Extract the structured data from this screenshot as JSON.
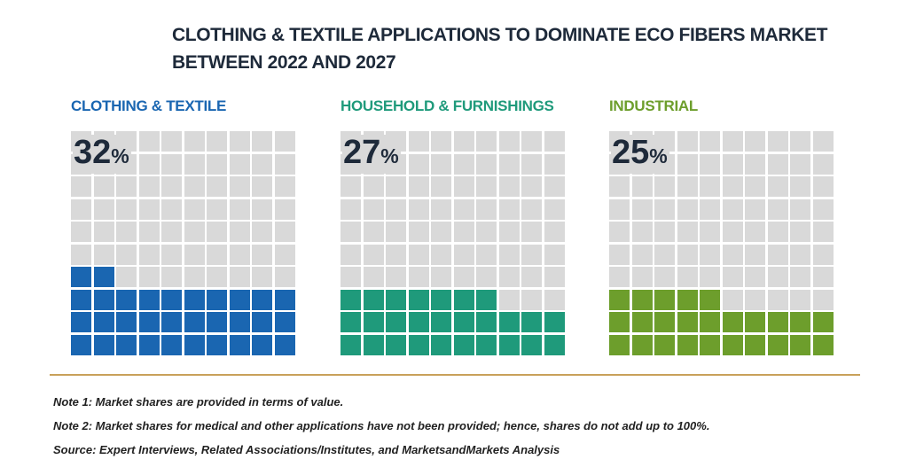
{
  "title": {
    "line1": "CLOTHING & TEXTILE APPLICATIONS TO DOMINATE ECO FIBERS MARKET",
    "line2": "BETWEEN 2022 AND 2027"
  },
  "chart_data": {
    "type": "waffle",
    "title": "CLOTHING & TEXTILE APPLICATIONS TO DOMINATE ECO FIBERS MARKET BETWEEN 2022 AND 2027",
    "series": [
      {
        "name": "CLOTHING & TEXTILE",
        "value": 32,
        "value_label": "32",
        "unit": "%",
        "color": "#1a66b1"
      },
      {
        "name": "HOUSEHOLD & FURNISHINGS",
        "value": 27,
        "value_label": "27",
        "unit": "%",
        "color": "#1f9a7b"
      },
      {
        "name": "INDUSTRIAL",
        "value": 25,
        "value_label": "25",
        "unit": "%",
        "color": "#6d9e2c"
      }
    ],
    "grid_rows": 10,
    "grid_cols": 10,
    "empty_color": "#d9d9d9",
    "number_color": "#1e2a3a"
  },
  "notes": [
    "Note 1: Market shares are provided in terms of value.",
    "Note 2: Market shares for medical and other applications have not been provided; hence, shares do not add up to 100%.",
    "Source: Expert Interviews, Related Associations/Institutes, and MarketsandMarkets Analysis"
  ],
  "divider_color": "#c8a15a"
}
